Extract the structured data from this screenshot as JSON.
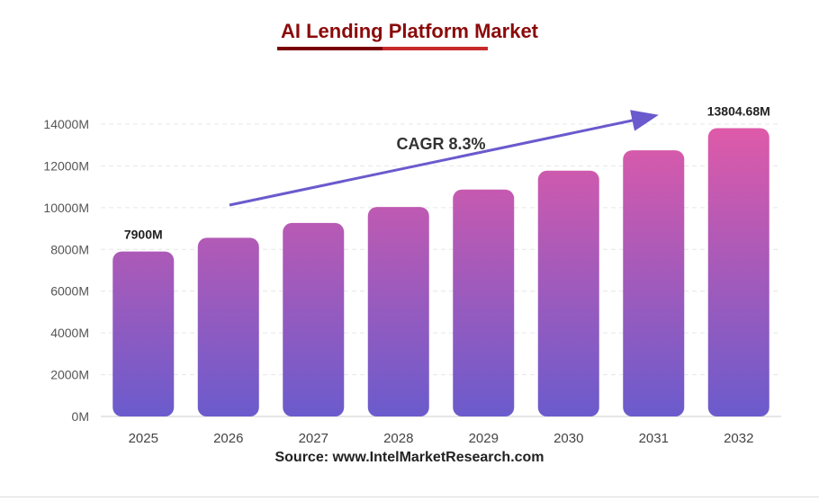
{
  "page": {
    "title": "AI Lending Platform Market",
    "source": "Source: www.IntelMarketResearch.com"
  },
  "chart_data": {
    "type": "bar",
    "title": "AI Lending Platform Market",
    "categories": [
      "2025",
      "2026",
      "2027",
      "2028",
      "2029",
      "2030",
      "2031",
      "2032"
    ],
    "values": [
      7900,
      8555,
      9265,
      10034,
      10867,
      11769,
      12746,
      13804.68
    ],
    "data_labels": [
      {
        "index": 0,
        "text": "7900M"
      },
      {
        "index": 7,
        "text": "13804.68M"
      }
    ],
    "ylim": [
      0,
      14000
    ],
    "yticks": [
      {
        "value": 0,
        "label": "0M"
      },
      {
        "value": 2000,
        "label": "2000M"
      },
      {
        "value": 4000,
        "label": "4000M"
      },
      {
        "value": 6000,
        "label": "6000M"
      },
      {
        "value": 8000,
        "label": "8000M"
      },
      {
        "value": 10000,
        "label": "10000M"
      },
      {
        "value": 12000,
        "label": "12000M"
      },
      {
        "value": 14000,
        "label": "14000M"
      }
    ],
    "grid": true,
    "annotation": {
      "text": "CAGR 8.3%"
    },
    "colors": {
      "bar_top": "#e05aa8",
      "bar_bottom": "#6b5bcc",
      "arrow": "#6a5acd",
      "grid": "#e6e6e6"
    }
  }
}
